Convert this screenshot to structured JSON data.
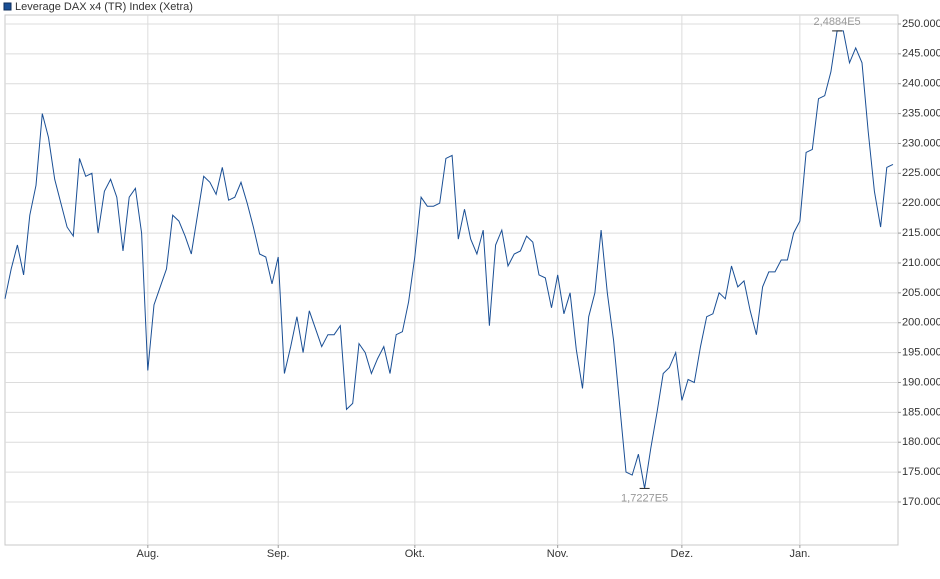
{
  "chart_data": {
    "type": "line",
    "title": "Leverage DAX x4 (TR) Index (Xetra)",
    "max_label": "2,4884E5",
    "min_label": "1,7227E5",
    "series": [
      {
        "name": "Leverage DAX x4 (TR) Index (Xetra)",
        "color": "#1a4f95",
        "values": [
          204000,
          209000,
          213000,
          208000,
          218000,
          223000,
          235000,
          231000,
          224000,
          220000,
          216000,
          214500,
          227500,
          224500,
          225000,
          215000,
          222000,
          224000,
          221000,
          212000,
          221000,
          222500,
          215000,
          192000,
          203000,
          206000,
          209000,
          218000,
          217000,
          214500,
          211500,
          218000,
          224500,
          223500,
          221500,
          226000,
          220500,
          221000,
          223500,
          220000,
          216000,
          211500,
          211000,
          206500,
          211000,
          191500,
          196000,
          201000,
          195000,
          202000,
          199000,
          196000,
          198000,
          198000,
          199500,
          185500,
          186500,
          196500,
          195000,
          191500,
          194000,
          196000,
          191500,
          198000,
          198500,
          203500,
          211000,
          221000,
          219500,
          219500,
          220000,
          227500,
          228000,
          214000,
          219000,
          214000,
          211500,
          215500,
          199500,
          213000,
          215500,
          209500,
          211500,
          212000,
          214500,
          213500,
          208000,
          207500,
          202500,
          208000,
          201500,
          205000,
          195500,
          189000,
          201000,
          205000,
          215500,
          205000,
          197000,
          186000,
          175000,
          174500,
          178000,
          172270,
          179000,
          185000,
          191500,
          192500,
          195000,
          187000,
          190500,
          190000,
          196000,
          201000,
          201500,
          205000,
          204000,
          209500,
          206000,
          207000,
          202000,
          198000,
          206000,
          208500,
          208500,
          210500,
          210500,
          215000,
          217000,
          228500,
          229000,
          237500,
          238000,
          242000,
          248840,
          248840,
          243500,
          246000,
          243500,
          232000,
          222000,
          216000,
          226000,
          226500
        ]
      }
    ],
    "xlim": [
      0,
      143
    ],
    "xticks": [
      {
        "value": 23,
        "label": "Aug."
      },
      {
        "value": 44,
        "label": "Sep."
      },
      {
        "value": 66,
        "label": "Okt."
      },
      {
        "value": 89,
        "label": "Nov."
      },
      {
        "value": 109,
        "label": "Dez."
      },
      {
        "value": 128,
        "label": "Jan."
      }
    ],
    "ylim": [
      162800,
      251500
    ],
    "yticks": [
      {
        "value": 170000,
        "label": "170.000"
      },
      {
        "value": 175000,
        "label": "175.000"
      },
      {
        "value": 180000,
        "label": "180.000"
      },
      {
        "value": 185000,
        "label": "185.000"
      },
      {
        "value": 190000,
        "label": "190.000"
      },
      {
        "value": 195000,
        "label": "195.000"
      },
      {
        "value": 200000,
        "label": "200.000"
      },
      {
        "value": 205000,
        "label": "205.000"
      },
      {
        "value": 210000,
        "label": "210.000"
      },
      {
        "value": 215000,
        "label": "215.000"
      },
      {
        "value": 220000,
        "label": "220.000"
      },
      {
        "value": 225000,
        "label": "225.000"
      },
      {
        "value": 230000,
        "label": "230.000"
      },
      {
        "value": 235000,
        "label": "235.000"
      },
      {
        "value": 240000,
        "label": "240.000"
      },
      {
        "value": 245000,
        "label": "245.000"
      },
      {
        "value": 250000,
        "label": "250.000"
      }
    ],
    "grid": true
  }
}
